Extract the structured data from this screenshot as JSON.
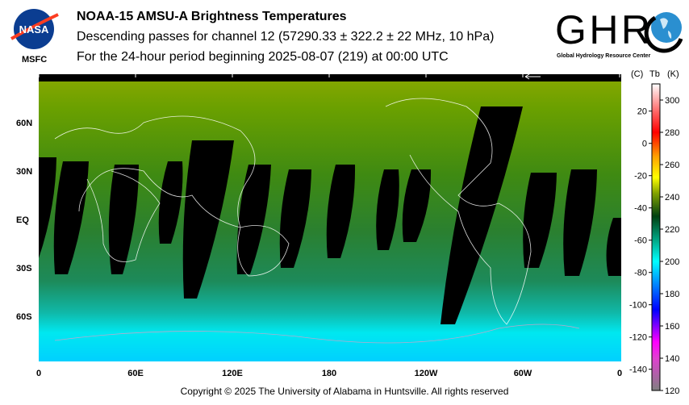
{
  "header": {
    "title": "NOAA-15 AMSU-A Brightness Temperatures",
    "subtitle1": "Descending passes for channel 12 (57290.33 ± 322.2 ± 22 MHz, 10 hPa)",
    "subtitle2": "For the 24-hour period beginning 2025-08-07 (219) at 00:00 UTC",
    "left_logo": "NASA",
    "left_logo_caption": "MSFC",
    "right_logo": "GHRC",
    "right_logo_caption": "Global Hydrology Resource Center"
  },
  "footer": {
    "copyright": "Copyright © 2025 The University of Alabama in Huntsville.  All rights reserved"
  },
  "chart_data": {
    "type": "heatmap",
    "title": "NOAA-15 AMSU-A Brightness Temperatures",
    "projection": "equirectangular",
    "x_ticks": [
      "0",
      "60E",
      "120E",
      "180",
      "120W",
      "60W",
      "0"
    ],
    "y_ticks": [
      "60N",
      "30N",
      "EQ",
      "30S",
      "60S"
    ],
    "colorbar": {
      "label_c": "(C)",
      "label_tb": "Tb",
      "label_k": "(K)",
      "ticks_k": [
        120,
        140,
        160,
        180,
        200,
        220,
        240,
        260,
        280,
        300
      ],
      "ticks_c": [
        20,
        0,
        -20,
        -40,
        -60,
        -80,
        -100,
        -120,
        -140
      ],
      "range_k": [
        120,
        310
      ]
    },
    "field_description_values_k": {
      "north_polar": 240,
      "mid_latitudes": 228,
      "southern_60S": 212,
      "south_polar": 200
    },
    "swath_gaps": "black (no data) between descending passes",
    "colors": {
      "no_data": "#000000",
      "coastlines": "#ffffff",
      "ice_shelf_coast": "#d8a0c8"
    }
  }
}
